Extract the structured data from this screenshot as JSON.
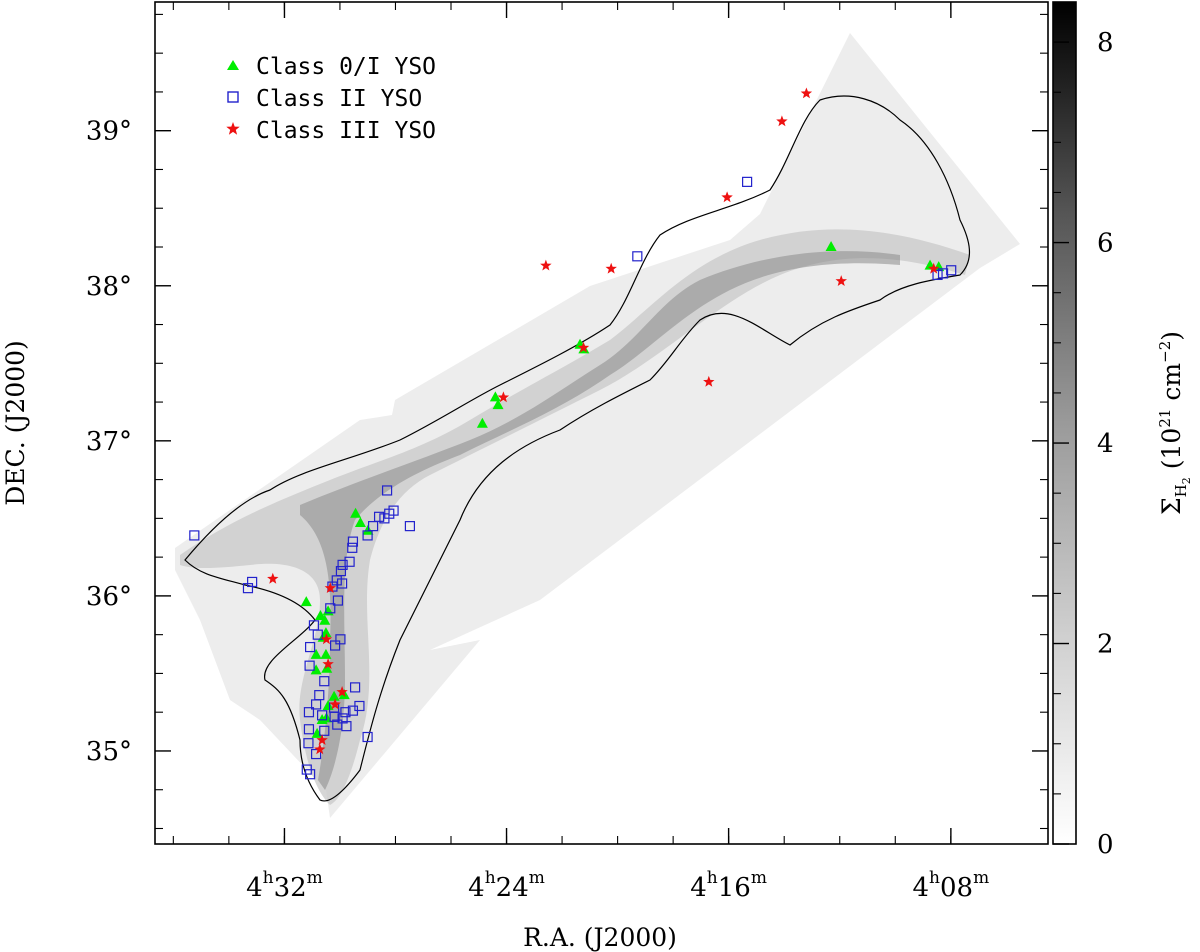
{
  "chart_data": {
    "type": "scatter",
    "title": "",
    "xlabel": "R.A. (J2000)",
    "ylabel": "DEC. (J2000)",
    "xlim_hours": [
      4.611,
      4.075
    ],
    "ylim_deg": [
      34.4,
      39.83
    ],
    "x_ticks": [
      {
        "value": 4.5333,
        "label_h": "4",
        "label_sup_h": "h",
        "label_m": "32",
        "label_sup_m": "m"
      },
      {
        "value": 4.4,
        "label_h": "4",
        "label_sup_h": "h",
        "label_m": "24",
        "label_sup_m": "m"
      },
      {
        "value": 4.2667,
        "label_h": "4",
        "label_sup_h": "h",
        "label_m": "16",
        "label_sup_m": "m"
      },
      {
        "value": 4.1333,
        "label_h": "4",
        "label_sup_h": "h",
        "label_m": "08",
        "label_sup_m": "m"
      }
    ],
    "y_ticks": [
      {
        "value": 35,
        "label": "35°"
      },
      {
        "value": 36,
        "label": "36°"
      },
      {
        "value": 37,
        "label": "37°"
      },
      {
        "value": 38,
        "label": "38°"
      },
      {
        "value": 39,
        "label": "39°"
      }
    ],
    "colorbar": {
      "label_main": "Σ",
      "label_sub": "H",
      "label_subsub": "2",
      "label_units": "(10",
      "label_exp": "21",
      "label_units2": "cm",
      "label_exp2": "−2",
      "label_close": ")",
      "range": [
        0,
        8.4
      ],
      "ticks": [
        {
          "value": 0,
          "label": "0"
        },
        {
          "value": 2,
          "label": "2"
        },
        {
          "value": 4,
          "label": "4"
        },
        {
          "value": 6,
          "label": "6"
        },
        {
          "value": 8,
          "label": "8"
        }
      ],
      "colormap": "gray_r"
    },
    "legend_position": "top-left",
    "series": [
      {
        "name": "Class 0/I YSO",
        "marker": "triangle",
        "color": "#00ee00",
        "points": [
          [
            4.5137,
            35.11
          ],
          [
            4.5107,
            35.2
          ],
          [
            4.5081,
            35.21
          ],
          [
            4.5071,
            35.29
          ],
          [
            4.5035,
            35.35
          ],
          [
            4.4974,
            35.36
          ],
          [
            4.5079,
            35.53
          ],
          [
            4.5143,
            35.52
          ],
          [
            4.5143,
            35.62
          ],
          [
            4.5084,
            35.62
          ],
          [
            4.5101,
            35.73
          ],
          [
            4.5084,
            35.76
          ],
          [
            4.5091,
            35.84
          ],
          [
            4.5117,
            35.87
          ],
          [
            4.5071,
            35.9
          ],
          [
            4.5202,
            35.96
          ],
          [
            4.4906,
            36.53
          ],
          [
            4.4877,
            36.47
          ],
          [
            4.4832,
            36.42
          ],
          [
            4.4145,
            37.11
          ],
          [
            4.4067,
            37.28
          ],
          [
            4.4051,
            37.23
          ],
          [
            4.3559,
            37.62
          ],
          [
            4.3536,
            37.59
          ],
          [
            4.2052,
            38.25
          ],
          [
            4.1458,
            38.13
          ],
          [
            4.1406,
            38.12
          ]
        ]
      },
      {
        "name": "Class II YSO",
        "marker": "open-square",
        "color": "#2222cc",
        "points": [
          [
            4.5874,
            36.39
          ],
          [
            4.5552,
            36.05
          ],
          [
            4.5527,
            36.09
          ],
          [
            4.5186,
            35.14
          ],
          [
            4.5186,
            35.25
          ],
          [
            4.5143,
            35.3
          ],
          [
            4.5107,
            35.23
          ],
          [
            4.5032,
            35.22
          ],
          [
            4.5016,
            35.17
          ],
          [
            4.4961,
            35.16
          ],
          [
            4.5035,
            35.28
          ],
          [
            4.4984,
            35.21
          ],
          [
            4.5124,
            35.36
          ],
          [
            4.5094,
            35.45
          ],
          [
            4.4967,
            35.25
          ],
          [
            4.4922,
            35.26
          ],
          [
            4.4883,
            35.29
          ],
          [
            4.4909,
            35.41
          ],
          [
            4.4834,
            35.09
          ],
          [
            4.5189,
            35.05
          ],
          [
            4.5199,
            34.88
          ],
          [
            4.5179,
            34.85
          ],
          [
            4.5143,
            34.98
          ],
          [
            4.5094,
            35.13
          ],
          [
            4.5182,
            35.55
          ],
          [
            4.5179,
            35.67
          ],
          [
            4.5133,
            35.75
          ],
          [
            4.5156,
            35.81
          ],
          [
            4.5029,
            35.68
          ],
          [
            4.4997,
            35.72
          ],
          [
            4.5058,
            35.92
          ],
          [
            4.5012,
            35.97
          ],
          [
            4.5045,
            36.06
          ],
          [
            4.5019,
            36.1
          ],
          [
            4.4987,
            36.08
          ],
          [
            4.4984,
            36.2
          ],
          [
            4.4994,
            36.16
          ],
          [
            4.4942,
            36.22
          ],
          [
            4.4926,
            36.31
          ],
          [
            4.4922,
            36.35
          ],
          [
            4.4834,
            36.39
          ],
          [
            4.4801,
            36.45
          ],
          [
            4.4765,
            36.51
          ],
          [
            4.4733,
            36.5
          ],
          [
            4.4704,
            36.53
          ],
          [
            4.4678,
            36.55
          ],
          [
            4.4717,
            36.68
          ],
          [
            4.458,
            36.45
          ],
          [
            4.3215,
            38.19
          ],
          [
            4.2556,
            38.67
          ],
          [
            4.1413,
            38.07
          ],
          [
            4.138,
            38.08
          ],
          [
            4.1331,
            38.1
          ]
        ]
      },
      {
        "name": "Class III YSO",
        "marker": "star",
        "color": "#ee1111",
        "points": [
          [
            4.5403,
            36.11
          ],
          [
            4.4987,
            35.38
          ],
          [
            4.5029,
            35.3
          ],
          [
            4.5121,
            35.01
          ],
          [
            4.5107,
            35.07
          ],
          [
            4.5081,
            35.72
          ],
          [
            4.5071,
            35.56
          ],
          [
            4.5058,
            36.05
          ],
          [
            4.4019,
            37.28
          ],
          [
            4.3764,
            38.13
          ],
          [
            4.3372,
            38.11
          ],
          [
            4.3538,
            37.6
          ],
          [
            4.2786,
            37.38
          ],
          [
            4.2676,
            38.57
          ],
          [
            4.2347,
            39.06
          ],
          [
            4.22,
            39.24
          ],
          [
            4.1991,
            38.03
          ],
          [
            4.1436,
            38.11
          ]
        ]
      }
    ]
  }
}
